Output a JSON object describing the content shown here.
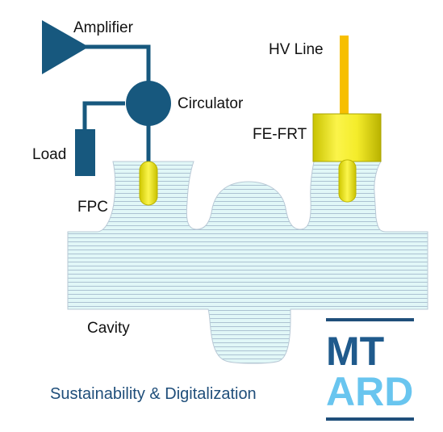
{
  "labels": {
    "amplifier": "Amplifier",
    "circulator": "Circulator",
    "load": "Load",
    "fpc": "FPC",
    "cavity": "Cavity",
    "hv_line": "HV Line",
    "fe_frt": "FE-FRT"
  },
  "tagline": "Sustainability & Digitalization",
  "logo": {
    "line1": "MT",
    "line2": "ARD"
  },
  "colors": {
    "component": "#17587e",
    "wire": "#17587e",
    "cavity_fill": "#e1f7f7",
    "cavity_lines": "#9fb5c9",
    "antenna": "#f2ea1c",
    "hv_line": "#f7bf00",
    "tagline": "#1f4e7a",
    "logo_dark": "#1f5a8c",
    "logo_light": "#69c5ef"
  }
}
